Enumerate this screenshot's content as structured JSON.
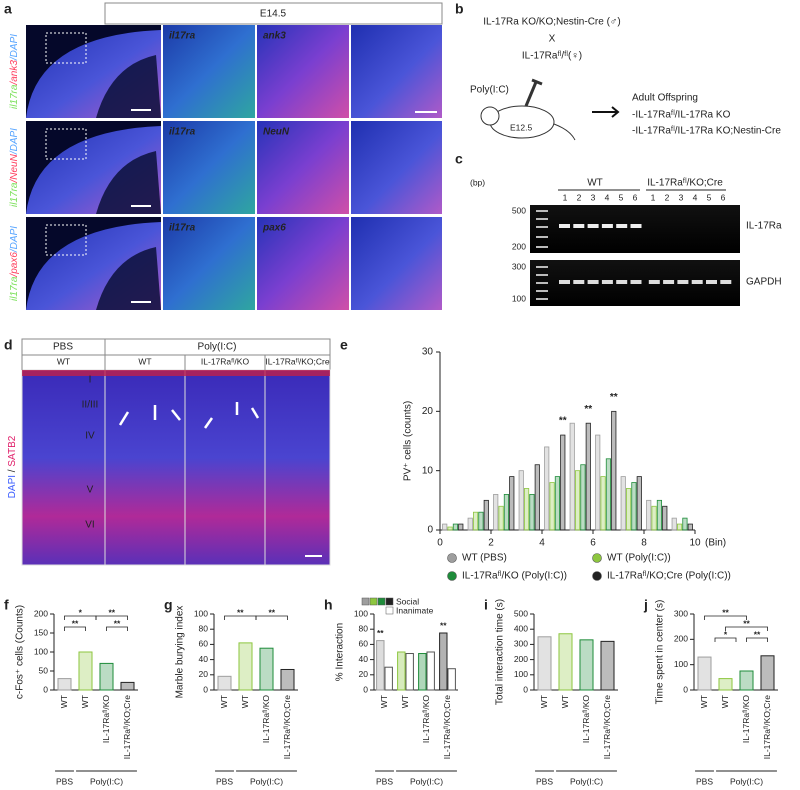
{
  "panel_labels": [
    "a",
    "b",
    "c",
    "d",
    "e",
    "f",
    "g",
    "h",
    "i",
    "j"
  ],
  "panel_a": {
    "stage": "E14.5",
    "stain_colors": [
      "#7be05a",
      "#ff3b5c",
      "#5aa6ff"
    ],
    "rows": [
      {
        "stain": [
          "il17ra",
          "/ank3",
          "/DAPI"
        ],
        "insets": [
          "il17ra",
          "ank3"
        ]
      },
      {
        "stain": [
          "il17ra",
          "/NeuN",
          "/DAPI"
        ],
        "insets": [
          "il17ra",
          "NeuN"
        ]
      },
      {
        "stain": [
          "il17ra",
          "/pax6",
          "/DAPI"
        ],
        "insets": [
          "il17ra",
          "pax6"
        ]
      }
    ]
  },
  "panel_b": {
    "cross": [
      "IL-17Ra KO/KO;Nestin-Cre (♂)",
      "X",
      "IL-17Raᶠˡ/ᶠˡ(♀)"
    ],
    "injection": "Poly(I:C)",
    "stage": "E12.5",
    "offspring_title": "Adult Offspring",
    "offspring": [
      "-IL-17Raᶠˡ/IL-17Ra KO",
      "-IL-17Raᶠˡ/IL-17Ra KO;Nestin-Cre"
    ]
  },
  "panel_c": {
    "unit": "(bp)",
    "ladder_top": [
      500,
      200
    ],
    "ladder_bottom": [
      300,
      100
    ],
    "groups": [
      "WT",
      "IL-17Raᶠˡ/KO;Cre"
    ],
    "lane_numbers": [
      [
        1,
        2,
        3,
        4,
        5,
        6
      ],
      [
        1,
        2,
        3,
        4,
        5,
        6
      ]
    ],
    "bands": [
      "IL-17Ra",
      "GAPDH"
    ]
  },
  "panel_d": {
    "treatments": [
      "PBS",
      "Poly(I:C)"
    ],
    "genotypes": [
      "WT",
      "WT",
      "IL-17Raᶠˡ/KO",
      "IL-17Raᶠˡ/KO;Cre"
    ],
    "layers": [
      "I",
      "II/III",
      "IV",
      "V",
      "VI"
    ],
    "stain": [
      "DAPI",
      " / ",
      "SATB2"
    ],
    "stain_colors": [
      "#3a5cff",
      "#222",
      "#e0206a"
    ]
  },
  "chart_data": [
    {
      "type": "bar",
      "ylabel": "PV⁺ cells (counts)",
      "xlabel": "(Bin)",
      "x": [
        0.5,
        1.5,
        2.5,
        3.5,
        4.5,
        5.5,
        6.5,
        7.5,
        8.5,
        9.5
      ],
      "xlim": [
        0,
        10
      ],
      "xticks": [
        0,
        2,
        4,
        6,
        8,
        10
      ],
      "ylim": [
        0,
        30
      ],
      "yticks": [
        0,
        10,
        20,
        30
      ],
      "series": [
        {
          "name": "WT (PBS)",
          "color": "#9e9e9e",
          "values": [
            1,
            2,
            6,
            10,
            14,
            18,
            16,
            9,
            5,
            2
          ]
        },
        {
          "name": "WT (Poly(I:C))",
          "color": "#8dc63f",
          "values": [
            0.5,
            3,
            4,
            7,
            8,
            10,
            9,
            7,
            4,
            1
          ]
        },
        {
          "name": "IL-17Raᶠˡ/KO (Poly(I:C))",
          "color": "#1e8c3a",
          "values": [
            1,
            3,
            6,
            6,
            9,
            11,
            12,
            8,
            5,
            2
          ]
        },
        {
          "name": "IL-17Raᶠˡ/KO;Cre (Poly(I:C))",
          "color": "#222222",
          "values": [
            1,
            5,
            9,
            11,
            16,
            18,
            20,
            9,
            4,
            1
          ]
        }
      ],
      "annotations": [
        "**",
        "**",
        "**"
      ]
    },
    {
      "type": "bar",
      "ylabel": "c-Fos⁺ cells (Counts)",
      "categories": [
        "WT",
        "WT",
        "IL-17Raᶠˡ/KO",
        "IL-17Raᶠˡ/KO;Cre"
      ],
      "groups": [
        "PBS",
        "Poly(I:C)"
      ],
      "values": [
        30,
        100,
        70,
        20
      ],
      "colors": [
        "#9e9e9e",
        "#8dc63f",
        "#1e8c3a",
        "#222222"
      ],
      "ylim": [
        0,
        200
      ],
      "yticks": [
        0,
        50,
        100,
        150,
        200
      ],
      "annotations": [
        "*",
        "**",
        "**",
        "**"
      ]
    },
    {
      "type": "bar",
      "ylabel": "Marble burying index",
      "categories": [
        "WT",
        "WT",
        "IL-17Raᶠˡ/KO",
        "IL-17Raᶠˡ/KO;Cre"
      ],
      "groups": [
        "PBS",
        "Poly(I:C)"
      ],
      "values": [
        18,
        62,
        55,
        27
      ],
      "colors": [
        "#9e9e9e",
        "#8dc63f",
        "#1e8c3a",
        "#222222"
      ],
      "ylim": [
        0,
        100
      ],
      "yticks": [
        0,
        20,
        40,
        60,
        80,
        100
      ],
      "annotations": [
        "**",
        "**"
      ]
    },
    {
      "type": "grouped_bar",
      "ylabel": "% Interaction",
      "categories": [
        "WT",
        "WT",
        "IL-17Raᶠˡ/KO",
        "IL-17Raᶠˡ/KO;Cre"
      ],
      "groups": [
        "PBS",
        "Poly(I:C)"
      ],
      "series": [
        {
          "name": "Social",
          "colors": [
            "#9e9e9e",
            "#8dc63f",
            "#1e8c3a",
            "#222222"
          ],
          "values": [
            65,
            50,
            48,
            75
          ]
        },
        {
          "name": "Inanimate",
          "color": "#ffffff",
          "values": [
            30,
            48,
            50,
            28
          ]
        }
      ],
      "ylim": [
        0,
        100
      ],
      "yticks": [
        0,
        20,
        40,
        60,
        80,
        100
      ],
      "annotations": [
        "**",
        "**"
      ]
    },
    {
      "type": "bar",
      "ylabel": "Total interaction time (s)",
      "categories": [
        "WT",
        "WT",
        "IL-17Raᶠˡ/KO",
        "IL-17Raᶠˡ/KO;Cre"
      ],
      "groups": [
        "PBS",
        "Poly(I:C)"
      ],
      "values": [
        350,
        370,
        330,
        320
      ],
      "colors": [
        "#9e9e9e",
        "#8dc63f",
        "#1e8c3a",
        "#222222"
      ],
      "ylim": [
        0,
        500
      ],
      "yticks": [
        0,
        100,
        200,
        300,
        400,
        500
      ]
    },
    {
      "type": "bar",
      "ylabel": "Time spent in center (s)",
      "categories": [
        "WT",
        "WT",
        "IL-17Raᶠˡ/KO",
        "IL-17Raᶠˡ/KO;Cre"
      ],
      "groups": [
        "PBS",
        "Poly(I:C)"
      ],
      "values": [
        130,
        45,
        75,
        135
      ],
      "colors": [
        "#9e9e9e",
        "#8dc63f",
        "#1e8c3a",
        "#222222"
      ],
      "ylim": [
        0,
        300
      ],
      "yticks": [
        0,
        100,
        200,
        300
      ],
      "annotations": [
        "**",
        "**",
        "*",
        "**"
      ]
    }
  ]
}
